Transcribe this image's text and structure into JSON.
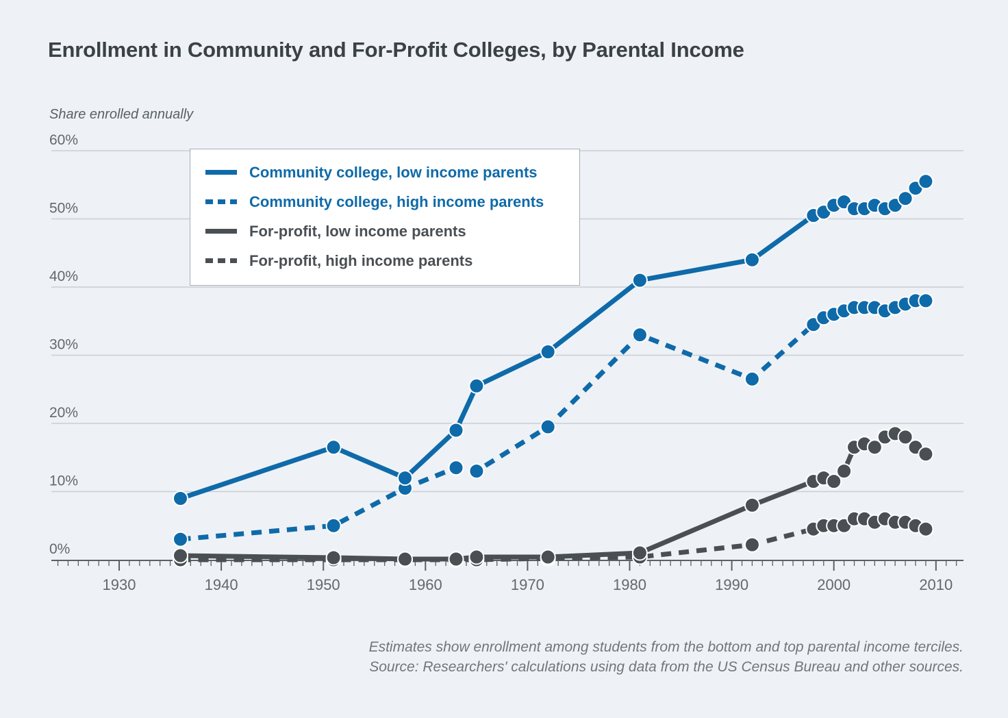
{
  "title": "Enrollment in Community and For-Profit Colleges, by Parental Income",
  "y_axis_label": "Share enrolled annually",
  "footer": {
    "line1": "Estimates show enrollment among students from the bottom and top parental income terciles.",
    "line2": "Source: Researchers' calculations using data from the US Census Bureau and other sources."
  },
  "colors": {
    "background": "#eef2f6",
    "blue_series": "#0f6aa9",
    "dark_series": "#4a4f53",
    "gridline": "#c9ced3",
    "axis": "#5b6065",
    "tick_label": "#62686e",
    "title_text": "#3a4147"
  },
  "chart_data": {
    "type": "line",
    "title": "Enrollment in Community and For-Profit Colleges, by Parental Income",
    "xlabel": "",
    "ylabel": "Share enrolled annually",
    "xlim": [
      1923,
      2013
    ],
    "ylim": [
      0,
      60
    ],
    "grid": true,
    "legend_position": "top-left",
    "x_ticks": [
      1930,
      1940,
      1950,
      1960,
      1970,
      1980,
      1990,
      2000,
      2010
    ],
    "y_tick_values": [
      0,
      10,
      20,
      30,
      40,
      50,
      60
    ],
    "y_tick_labels": [
      "0%",
      "10%",
      "20%",
      "30%",
      "40%",
      "50%",
      "60%"
    ],
    "series": [
      {
        "id": "cc_low",
        "name": "Community college, low income parents",
        "color": "#0f6aa9",
        "line_style": "solid",
        "points": [
          [
            1936,
            9
          ],
          [
            1951,
            16.5
          ],
          [
            1958,
            12
          ],
          [
            1963,
            19
          ],
          [
            1965,
            25.5
          ],
          [
            1972,
            30.5
          ],
          [
            1981,
            41
          ],
          [
            1992,
            44
          ],
          [
            1998,
            50.5
          ],
          [
            1999,
            51
          ],
          [
            2000,
            52
          ],
          [
            2001,
            52.5
          ],
          [
            2002,
            51.5
          ],
          [
            2003,
            51.5
          ],
          [
            2004,
            52
          ],
          [
            2005,
            51.5
          ],
          [
            2006,
            52
          ],
          [
            2007,
            53
          ],
          [
            2008,
            54.5
          ],
          [
            2009,
            55.5
          ]
        ]
      },
      {
        "id": "cc_high",
        "name": "Community college, high income parents",
        "color": "#0f6aa9",
        "line_style": "dashed",
        "points": [
          [
            1936,
            3
          ],
          [
            1951,
            5
          ],
          [
            1958,
            10.5
          ],
          [
            1963,
            13.5
          ],
          [
            1965,
            13
          ],
          [
            1972,
            19.5
          ],
          [
            1981,
            33
          ],
          [
            1992,
            26.5
          ],
          [
            1998,
            34.5
          ],
          [
            1999,
            35.5
          ],
          [
            2000,
            36
          ],
          [
            2001,
            36.5
          ],
          [
            2002,
            37
          ],
          [
            2003,
            37
          ],
          [
            2004,
            37
          ],
          [
            2005,
            36.5
          ],
          [
            2006,
            37
          ],
          [
            2007,
            37.5
          ],
          [
            2008,
            38
          ],
          [
            2009,
            38
          ]
        ]
      },
      {
        "id": "fp_low",
        "name": "For-profit, low income parents",
        "color": "#4a4f53",
        "line_style": "solid",
        "points": [
          [
            1936,
            0.6
          ],
          [
            1951,
            0.3
          ],
          [
            1958,
            0.1
          ],
          [
            1963,
            0.1
          ],
          [
            1965,
            0.4
          ],
          [
            1972,
            0.4
          ],
          [
            1981,
            1
          ],
          [
            1992,
            8
          ],
          [
            1998,
            11.5
          ],
          [
            1999,
            12
          ],
          [
            2000,
            11.5
          ],
          [
            2001,
            13
          ],
          [
            2002,
            16.5
          ],
          [
            2003,
            17
          ],
          [
            2004,
            16.5
          ],
          [
            2005,
            18
          ],
          [
            2006,
            18.5
          ],
          [
            2007,
            18
          ],
          [
            2008,
            16.5
          ],
          [
            2009,
            15.5
          ]
        ]
      },
      {
        "id": "fp_high",
        "name": "For-profit, high income parents",
        "color": "#4a4f53",
        "line_style": "dashed",
        "points": [
          [
            1936,
            0
          ],
          [
            1951,
            0
          ],
          [
            1958,
            0
          ],
          [
            1963,
            0
          ],
          [
            1965,
            0
          ],
          [
            1972,
            0.2
          ],
          [
            1981,
            0.4
          ],
          [
            1992,
            2.2
          ],
          [
            1998,
            4.5
          ],
          [
            1999,
            5
          ],
          [
            2000,
            5
          ],
          [
            2001,
            5
          ],
          [
            2002,
            6
          ],
          [
            2003,
            6
          ],
          [
            2004,
            5.5
          ],
          [
            2005,
            6
          ],
          [
            2006,
            5.5
          ],
          [
            2007,
            5.5
          ],
          [
            2008,
            5
          ],
          [
            2009,
            4.5
          ]
        ]
      }
    ]
  }
}
